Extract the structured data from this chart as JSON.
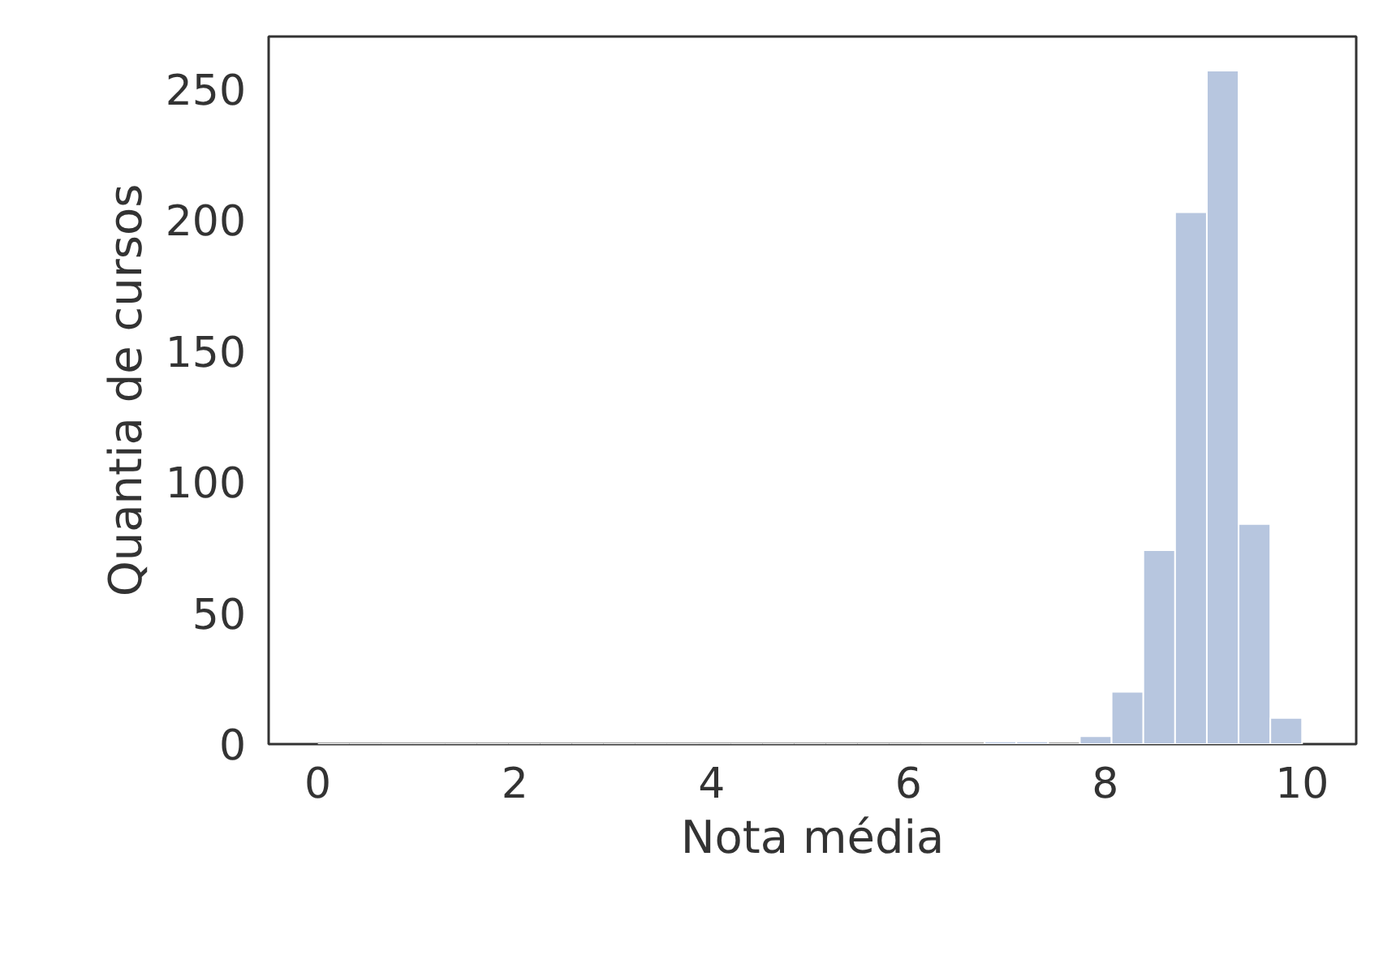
{
  "chart_data": {
    "type": "histogram",
    "xlabel": "Nota média",
    "ylabel": "Quantia de cursos",
    "bins": [
      0,
      0.3226,
      0.6452,
      0.9677,
      1.2903,
      1.6129,
      1.9355,
      2.2581,
      2.5806,
      2.9032,
      3.2258,
      3.5484,
      3.871,
      4.1935,
      4.5161,
      4.8387,
      5.1613,
      5.4839,
      5.8065,
      6.129,
      6.4516,
      6.7742,
      7.0968,
      7.4194,
      7.7419,
      8.0645,
      8.3871,
      8.7097,
      9.0323,
      9.3548,
      9.6774,
      10
    ],
    "values": [
      0,
      0,
      0,
      0,
      0,
      0,
      0,
      0,
      0,
      0,
      0,
      0,
      0,
      0,
      0,
      0,
      0,
      0,
      0,
      0,
      0,
      1,
      1,
      0,
      3,
      20,
      74,
      203,
      257,
      84,
      10
    ],
    "color": "#b7c6df",
    "xlim": [
      -0.5,
      10.55
    ],
    "ylim": [
      0,
      270
    ],
    "xticks": [
      0,
      2,
      4,
      6,
      8,
      10
    ],
    "yticks": [
      0,
      50,
      100,
      150,
      200,
      250
    ],
    "grid": false
  }
}
